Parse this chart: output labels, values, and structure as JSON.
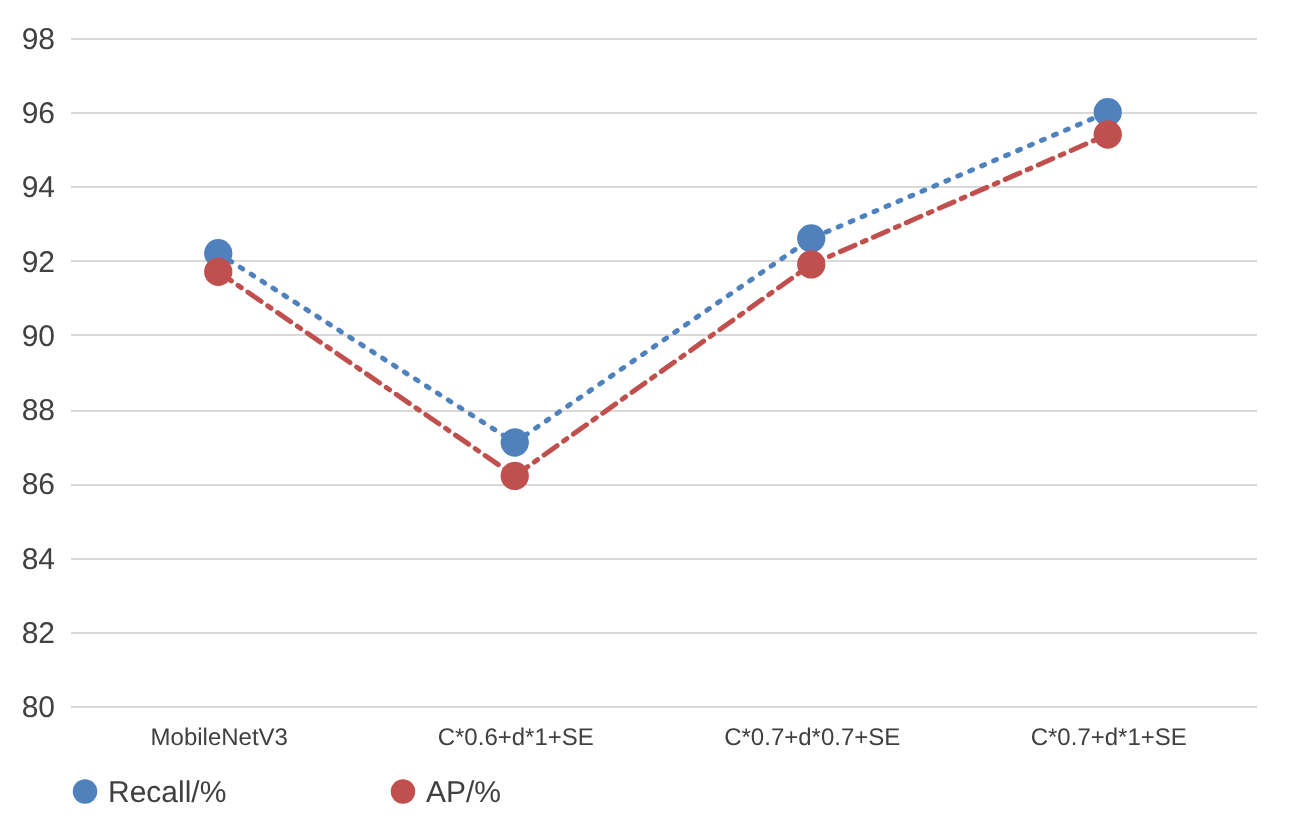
{
  "chart_data": {
    "type": "line",
    "categories": [
      "MobileNetV3",
      "C*0.6+d*1+SE",
      "C*0.7+d*0.7+SE",
      "C*0.7+d*1+SE"
    ],
    "series": [
      {
        "name": "Recall/%",
        "color": "#4f81bd",
        "values": [
          92.2,
          87.1,
          92.6,
          96.0
        ],
        "line_style": "dotted"
      },
      {
        "name": "AP/%",
        "color": "#c0504d",
        "values": [
          91.7,
          86.2,
          91.9,
          95.4
        ],
        "line_style": "dashed"
      }
    ],
    "ylim": [
      80,
      98
    ],
    "yticks": [
      80,
      82,
      84,
      86,
      88,
      90,
      92,
      94,
      96,
      98
    ],
    "grid": "y",
    "legend": "bottom",
    "marker": "circle"
  }
}
